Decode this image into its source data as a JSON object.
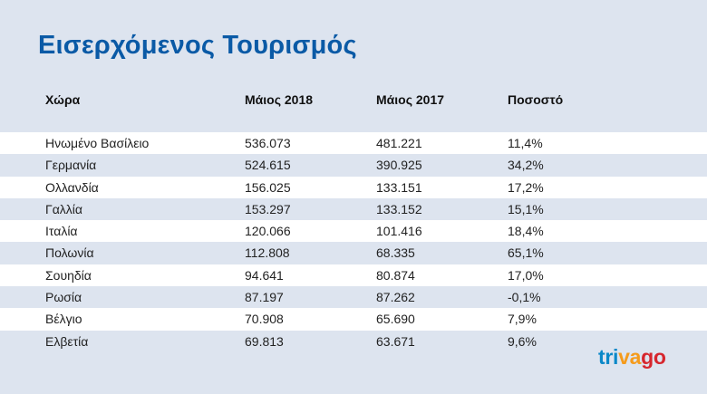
{
  "title": "Εισερχόμενος Τουρισμός",
  "chart_data": {
    "type": "table",
    "columns": [
      "Χώρα",
      "Μάιος 2018",
      "Μάιος 2017",
      "Ποσοστό"
    ],
    "rows": [
      [
        "Ηνωμένο Βασίλειο",
        "536.073",
        "481.221",
        "11,4%"
      ],
      [
        "Γερμανία",
        "524.615",
        "390.925",
        "34,2%"
      ],
      [
        "Ολλανδία",
        "156.025",
        "133.151",
        "17,2%"
      ],
      [
        "Γαλλία",
        "153.297",
        "133.152",
        "15,1%"
      ],
      [
        "Ιταλία",
        "120.066",
        "101.416",
        "18,4%"
      ],
      [
        "Πολωνία",
        "112.808",
        "68.335",
        "65,1%"
      ],
      [
        "Σουηδία",
        "94.641",
        "80.874",
        "17,0%"
      ],
      [
        "Ρωσία",
        "87.197",
        "87.262",
        "-0,1%"
      ],
      [
        "Βέλγιο",
        "70.908",
        "65.690",
        "7,9%"
      ],
      [
        "Ελβετία",
        "69.813",
        "63.671",
        "9,6%"
      ]
    ]
  },
  "logo": {
    "part1": "tri",
    "part2": "va",
    "part3": "go"
  },
  "colors": {
    "title": "#0a5aa6",
    "band": "#dde4ef",
    "row_light": "#ffffff"
  }
}
